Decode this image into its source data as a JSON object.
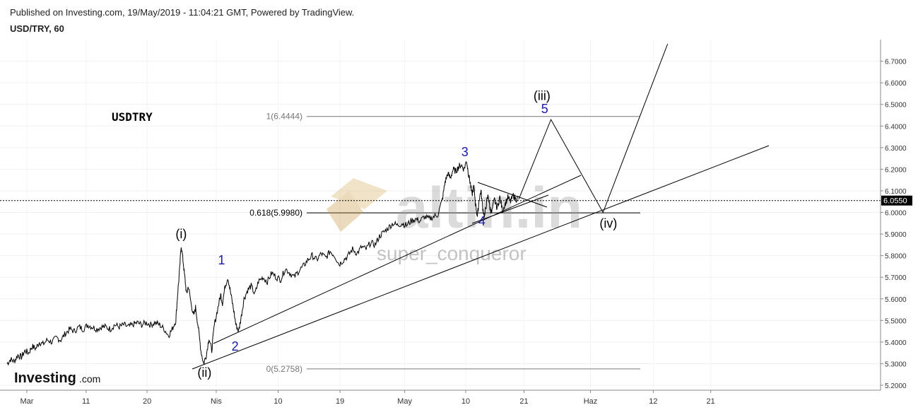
{
  "header": {
    "publish_line": "Published on Investing.com, 19/May/2019 - 11:04:21 GMT, Powered by TradingView.",
    "symbol_line": "USD/TRY, 60"
  },
  "colors": {
    "background": "#ffffff",
    "price": "#000000",
    "grid": "#eeeeee",
    "wave_label_blue": "#1a1aa8",
    "current_price_box": "#000000",
    "watermark": "#d8b878"
  },
  "watermark": {
    "brand": "altin.in",
    "author": "super_conqueror"
  },
  "logo": {
    "main": "Investing",
    "suffix": ".com"
  },
  "chart_data": {
    "type": "line",
    "title": "USDTRY",
    "x_tick_labels": [
      "Mar",
      "11",
      "20",
      "Nis",
      "10",
      "19",
      "May",
      "10",
      "21",
      "Haz",
      "12",
      "21"
    ],
    "ylim": [
      5.18,
      6.78
    ],
    "y_tick_labels": [
      "6.7000",
      "6.6000",
      "6.5000",
      "6.4000",
      "6.3000",
      "6.2000",
      "6.1000",
      "6.0000",
      "5.9000",
      "5.8000",
      "5.7000",
      "5.6000",
      "5.5000",
      "5.4000",
      "5.3000",
      "5.2000"
    ],
    "current_price": 6.055,
    "current_price_label": "6.0550",
    "price_series": [
      [
        0.0,
        5.3
      ],
      [
        0.4,
        5.32
      ],
      [
        0.8,
        5.31
      ],
      [
        1.2,
        5.34
      ],
      [
        1.6,
        5.33
      ],
      [
        2.0,
        5.36
      ],
      [
        2.4,
        5.35
      ],
      [
        2.8,
        5.38
      ],
      [
        3.2,
        5.37
      ],
      [
        3.6,
        5.4
      ],
      [
        4.0,
        5.39
      ],
      [
        4.5,
        5.41
      ],
      [
        5.0,
        5.4
      ],
      [
        5.5,
        5.42
      ],
      [
        6.0,
        5.41
      ],
      [
        6.5,
        5.44
      ],
      [
        7.0,
        5.46
      ],
      [
        7.5,
        5.45
      ],
      [
        8.0,
        5.47
      ],
      [
        8.5,
        5.46
      ],
      [
        9.0,
        5.48
      ],
      [
        9.5,
        5.47
      ],
      [
        10.0,
        5.46
      ],
      [
        10.5,
        5.47
      ],
      [
        11.0,
        5.47
      ],
      [
        11.5,
        5.46
      ],
      [
        12.0,
        5.48
      ],
      [
        12.5,
        5.47
      ],
      [
        13.0,
        5.48
      ],
      [
        13.5,
        5.47
      ],
      [
        14.0,
        5.48
      ],
      [
        14.5,
        5.49
      ],
      [
        15.0,
        5.48
      ],
      [
        15.5,
        5.49
      ],
      [
        16.0,
        5.48
      ],
      [
        16.5,
        5.49
      ],
      [
        17.0,
        5.48
      ],
      [
        17.5,
        5.46
      ],
      [
        18.0,
        5.43
      ],
      [
        18.4,
        5.46
      ],
      [
        18.8,
        5.5
      ],
      [
        19.0,
        5.62
      ],
      [
        19.2,
        5.72
      ],
      [
        19.4,
        5.85
      ],
      [
        19.6,
        5.78
      ],
      [
        19.8,
        5.7
      ],
      [
        20.0,
        5.62
      ],
      [
        20.2,
        5.66
      ],
      [
        20.5,
        5.58
      ],
      [
        20.8,
        5.52
      ],
      [
        21.0,
        5.56
      ],
      [
        21.3,
        5.47
      ],
      [
        21.6,
        5.36
      ],
      [
        21.9,
        5.3
      ],
      [
        22.2,
        5.34
      ],
      [
        22.5,
        5.42
      ],
      [
        22.8,
        5.36
      ],
      [
        23.1,
        5.48
      ],
      [
        23.5,
        5.56
      ],
      [
        23.8,
        5.62
      ],
      [
        24.0,
        5.58
      ],
      [
        24.3,
        5.66
      ],
      [
        24.6,
        5.7
      ],
      [
        24.9,
        5.63
      ],
      [
        25.2,
        5.56
      ],
      [
        25.5,
        5.48
      ],
      [
        25.8,
        5.45
      ],
      [
        26.1,
        5.52
      ],
      [
        26.4,
        5.6
      ],
      [
        26.8,
        5.64
      ],
      [
        27.2,
        5.66
      ],
      [
        27.6,
        5.62
      ],
      [
        28.0,
        5.68
      ],
      [
        28.5,
        5.7
      ],
      [
        29.0,
        5.68
      ],
      [
        29.5,
        5.72
      ],
      [
        30.0,
        5.7
      ],
      [
        30.5,
        5.69
      ],
      [
        31.0,
        5.74
      ],
      [
        31.5,
        5.72
      ],
      [
        32.0,
        5.7
      ],
      [
        32.5,
        5.73
      ],
      [
        33.0,
        5.75
      ],
      [
        33.5,
        5.78
      ],
      [
        34.0,
        5.8
      ],
      [
        34.5,
        5.78
      ],
      [
        35.0,
        5.81
      ],
      [
        35.5,
        5.79
      ],
      [
        36.0,
        5.82
      ],
      [
        36.5,
        5.8
      ],
      [
        37.0,
        5.76
      ],
      [
        37.5,
        5.78
      ],
      [
        38.0,
        5.8
      ],
      [
        38.5,
        5.83
      ],
      [
        39.0,
        5.81
      ],
      [
        39.5,
        5.84
      ],
      [
        40.0,
        5.83
      ],
      [
        40.5,
        5.86
      ],
      [
        41.0,
        5.85
      ],
      [
        41.5,
        5.89
      ],
      [
        42.0,
        5.91
      ],
      [
        42.5,
        5.93
      ],
      [
        43.0,
        5.95
      ],
      [
        43.5,
        5.94
      ],
      [
        44.0,
        5.95
      ],
      [
        44.5,
        5.94
      ],
      [
        45.0,
        5.96
      ],
      [
        45.5,
        5.97
      ],
      [
        46.0,
        5.96
      ],
      [
        46.5,
        5.98
      ],
      [
        47.0,
        5.97
      ],
      [
        47.5,
        5.98
      ],
      [
        48.0,
        5.99
      ],
      [
        48.5,
        6.06
      ],
      [
        48.8,
        6.14
      ],
      [
        49.1,
        6.18
      ],
      [
        49.4,
        6.16
      ],
      [
        49.7,
        6.2
      ],
      [
        50.0,
        6.19
      ],
      [
        50.3,
        6.21
      ],
      [
        50.6,
        6.22
      ],
      [
        50.9,
        6.2
      ],
      [
        51.2,
        6.24
      ],
      [
        51.4,
        6.18
      ],
      [
        51.6,
        6.14
      ],
      [
        51.8,
        6.08
      ],
      [
        52.0,
        6.12
      ],
      [
        52.2,
        6.04
      ],
      [
        52.4,
        5.98
      ],
      [
        52.6,
        6.06
      ],
      [
        52.8,
        6.1
      ],
      [
        53.0,
        6.02
      ],
      [
        53.2,
        5.98
      ],
      [
        53.4,
        6.04
      ],
      [
        53.6,
        6.08
      ],
      [
        53.8,
        6.02
      ],
      [
        54.0,
        6.0
      ],
      [
        54.3,
        6.06
      ],
      [
        54.6,
        6.02
      ],
      [
        54.9,
        6.07
      ],
      [
        55.2,
        6.01
      ],
      [
        55.5,
        6.04
      ],
      [
        55.8,
        6.07
      ],
      [
        56.1,
        6.05
      ],
      [
        56.4,
        6.08
      ],
      [
        56.7,
        6.06
      ],
      [
        57.0,
        6.07
      ]
    ],
    "annotations": {
      "fib_levels": [
        {
          "label": "1(6.4444)",
          "price": 6.4444
        },
        {
          "label": "0.618(5.9980)",
          "price": 5.998
        },
        {
          "label": "0(5.2758)",
          "price": 5.2758
        }
      ],
      "wave_labels": [
        {
          "text": "(i)",
          "t": 19.4,
          "price": 5.88,
          "color": "black"
        },
        {
          "text": "(ii)",
          "t": 22.0,
          "price": 5.24,
          "color": "black"
        },
        {
          "text": "1",
          "t": 23.9,
          "price": 5.76,
          "color": "blue"
        },
        {
          "text": "2",
          "t": 25.4,
          "price": 5.36,
          "color": "blue"
        },
        {
          "text": "3",
          "t": 51.0,
          "price": 6.26,
          "color": "blue"
        },
        {
          "text": "4",
          "t": 52.9,
          "price": 5.94,
          "color": "blue"
        },
        {
          "text": "(iii)",
          "t": 59.6,
          "price": 6.52,
          "color": "black"
        },
        {
          "text": "5",
          "t": 59.9,
          "price": 6.46,
          "color": "blue"
        },
        {
          "text": "(iv)",
          "t": 67.0,
          "price": 5.93,
          "color": "black"
        }
      ],
      "projection": [
        [
          57.0,
          6.06
        ],
        [
          60.6,
          6.43
        ],
        [
          66.4,
          6.0
        ],
        [
          73.6,
          6.78
        ]
      ]
    }
  }
}
